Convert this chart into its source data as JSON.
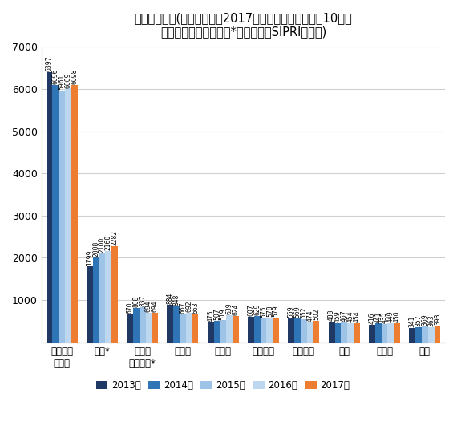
{
  "title": "主要国軍事費(米ドル換算で2017年における軍事費上位10位、\n米ドル換算、億ドル、*は推定値、SIPRI発表値)",
  "categories": [
    "アメリカ\n合衆国",
    "中国*",
    "サウジ\nアラビア*",
    "ロシア",
    "インド",
    "フランス",
    "イギリス",
    "日本",
    "ドイツ",
    "韓国"
  ],
  "years": [
    "2013年",
    "2014年",
    "2015年",
    "2016年",
    "2017年"
  ],
  "values": {
    "2013年": [
      6397,
      1799,
      670,
      884,
      475,
      607,
      559,
      488,
      416,
      341
    ],
    "2014年": [
      6096,
      2008,
      808,
      848,
      507,
      629,
      569,
      459,
      441,
      357
    ],
    "2015年": [
      5961,
      2100,
      837,
      667,
      519,
      575,
      552,
      467,
      435,
      369
    ],
    "2016年": [
      6009,
      2160,
      694,
      692,
      639,
      578,
      474,
      454,
      449,
      363
    ],
    "2017年": [
      6098,
      2282,
      694,
      663,
      624,
      579,
      502,
      454,
      450,
      393
    ]
  },
  "bar_colors": [
    "#1f3864",
    "#2f75b6",
    "#9dc3e6",
    "#bdd7ee",
    "#ed7d31"
  ],
  "ylim": [
    0,
    7000
  ],
  "yticks": [
    0,
    1000,
    2000,
    3000,
    4000,
    5000,
    6000,
    7000
  ],
  "background_color": "#ffffff",
  "title_fontsize": 10.5,
  "label_fontsize": 5.5,
  "legend_fontsize": 8.5,
  "tick_fontsize": 9
}
